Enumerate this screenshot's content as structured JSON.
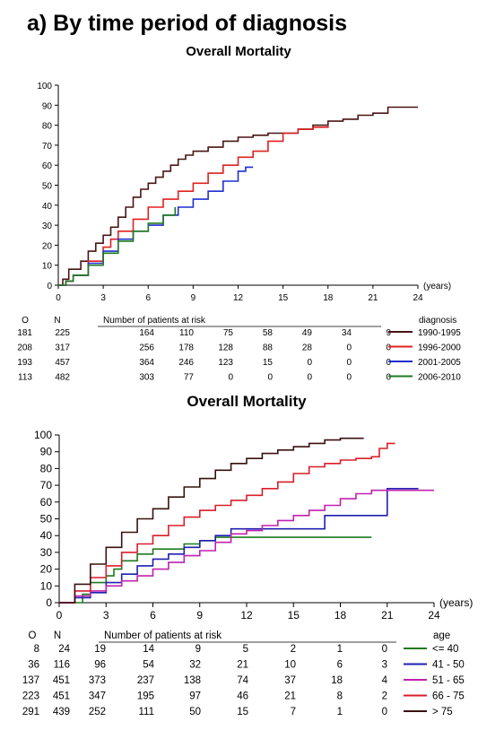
{
  "heading": "a)  By time period of diagnosis",
  "chart_data": [
    {
      "type": "line",
      "title": "Overall Mortality",
      "xunit": "(years)",
      "xlim": [
        0,
        24
      ],
      "ylim": [
        0,
        100
      ],
      "xticks": [
        0,
        3,
        6,
        9,
        12,
        15,
        18,
        21,
        24
      ],
      "yticks": [
        0,
        10,
        20,
        30,
        40,
        50,
        60,
        70,
        80,
        90,
        100
      ],
      "legend_title": "diagnosis",
      "risk_table": {
        "header_O": "O",
        "header_N": "N",
        "label": "Number of patients at risk",
        "rows": [
          {
            "O": "181",
            "N": "225",
            "values": [
              "164",
              "110",
              "75",
              "58",
              "49",
              "34",
              "9"
            ]
          },
          {
            "O": "208",
            "N": "317",
            "values": [
              "256",
              "178",
              "128",
              "88",
              "28",
              "0",
              "0"
            ]
          },
          {
            "O": "193",
            "N": "457",
            "values": [
              "364",
              "246",
              "123",
              "15",
              "0",
              "0",
              "0"
            ]
          },
          {
            "O": "113",
            "N": "482",
            "values": [
              "303",
              "77",
              "0",
              "0",
              "0",
              "0",
              "0"
            ]
          }
        ]
      },
      "series": [
        {
          "name": "1990-1995",
          "color": "#4a1414",
          "points": [
            [
              0,
              0
            ],
            [
              0.3,
              3
            ],
            [
              0.7,
              8
            ],
            [
              1.5,
              12
            ],
            [
              2,
              17
            ],
            [
              2.5,
              21
            ],
            [
              3,
              25
            ],
            [
              3.5,
              29
            ],
            [
              4,
              34
            ],
            [
              4.5,
              39
            ],
            [
              5,
              44
            ],
            [
              5.5,
              48
            ],
            [
              6,
              51
            ],
            [
              6.5,
              54
            ],
            [
              7,
              57
            ],
            [
              7.5,
              60
            ],
            [
              8,
              63
            ],
            [
              8.5,
              65
            ],
            [
              9,
              67
            ],
            [
              10,
              69
            ],
            [
              11,
              72
            ],
            [
              12,
              74
            ],
            [
              13,
              75
            ],
            [
              14,
              76
            ],
            [
              15,
              76
            ],
            [
              16,
              78
            ],
            [
              17,
              80
            ],
            [
              18,
              82
            ],
            [
              19,
              83
            ],
            [
              20,
              85
            ],
            [
              21,
              86
            ],
            [
              22,
              89
            ],
            [
              24,
              89
            ]
          ]
        },
        {
          "name": "1996-2000",
          "color": "#e02020",
          "points": [
            [
              0,
              0
            ],
            [
              0.5,
              2
            ],
            [
              1,
              5
            ],
            [
              2,
              12
            ],
            [
              3,
              19
            ],
            [
              3.5,
              23
            ],
            [
              4,
              27
            ],
            [
              5,
              33
            ],
            [
              6,
              39
            ],
            [
              7,
              43
            ],
            [
              8,
              47
            ],
            [
              9,
              51
            ],
            [
              10,
              56
            ],
            [
              11,
              60
            ],
            [
              12,
              64
            ],
            [
              13,
              67
            ],
            [
              14,
              72
            ],
            [
              15,
              76
            ],
            [
              16,
              78
            ],
            [
              17,
              79
            ],
            [
              18,
              80
            ]
          ]
        },
        {
          "name": "2001-2005",
          "color": "#1f2ecf",
          "points": [
            [
              0,
              0
            ],
            [
              0.5,
              2
            ],
            [
              1,
              5
            ],
            [
              2,
              11
            ],
            [
              3,
              17
            ],
            [
              4,
              23
            ],
            [
              5,
              27
            ],
            [
              6,
              30
            ],
            [
              7,
              35
            ],
            [
              8,
              39
            ],
            [
              9,
              43
            ],
            [
              10,
              47
            ],
            [
              11,
              52
            ],
            [
              12,
              57
            ],
            [
              12.5,
              59
            ],
            [
              13,
              59
            ]
          ]
        },
        {
          "name": "2006-2010",
          "color": "#1f7a1f",
          "points": [
            [
              0,
              0
            ],
            [
              0.5,
              2
            ],
            [
              1,
              5
            ],
            [
              2,
              10
            ],
            [
              3,
              16
            ],
            [
              4,
              22
            ],
            [
              5,
              27
            ],
            [
              6,
              31
            ],
            [
              7,
              35
            ],
            [
              7.8,
              39
            ]
          ]
        }
      ]
    },
    {
      "type": "line",
      "title": "Overall Mortality",
      "xunit": "(years)",
      "xlim": [
        0,
        24
      ],
      "ylim": [
        0,
        100
      ],
      "xticks": [
        0,
        3,
        6,
        9,
        12,
        15,
        18,
        21,
        24
      ],
      "yticks": [
        0,
        10,
        20,
        30,
        40,
        50,
        60,
        70,
        80,
        90,
        100
      ],
      "legend_title": "age",
      "risk_table": {
        "header_O": "O",
        "header_N": "N",
        "label": "Number of patients at risk",
        "rows": [
          {
            "O": "8",
            "N": "24",
            "values": [
              "19",
              "14",
              "9",
              "5",
              "2",
              "1",
              "0"
            ]
          },
          {
            "O": "36",
            "N": "116",
            "values": [
              "96",
              "54",
              "32",
              "21",
              "10",
              "6",
              "3"
            ]
          },
          {
            "O": "137",
            "N": "451",
            "values": [
              "373",
              "237",
              "138",
              "74",
              "37",
              "18",
              "4"
            ]
          },
          {
            "O": "223",
            "N": "451",
            "values": [
              "347",
              "195",
              "97",
              "46",
              "21",
              "8",
              "2"
            ]
          },
          {
            "O": "291",
            "N": "439",
            "values": [
              "252",
              "111",
              "50",
              "15",
              "7",
              "1",
              "0"
            ]
          }
        ]
      },
      "series": [
        {
          "name": "<= 40",
          "color": "#1f7a1f",
          "points": [
            [
              0,
              0
            ],
            [
              1.5,
              5
            ],
            [
              2,
              12
            ],
            [
              3,
              16
            ],
            [
              3.5,
              20
            ],
            [
              4,
              25
            ],
            [
              5,
              29
            ],
            [
              6,
              32
            ],
            [
              7,
              32
            ],
            [
              8,
              35
            ],
            [
              9,
              37
            ],
            [
              10,
              39
            ],
            [
              20,
              39
            ]
          ]
        },
        {
          "name": "41 - 50",
          "color": "#1f1fb0",
          "points": [
            [
              0,
              0
            ],
            [
              1,
              3
            ],
            [
              2,
              6
            ],
            [
              3,
              12
            ],
            [
              4,
              17
            ],
            [
              5,
              22
            ],
            [
              6,
              26
            ],
            [
              7,
              29
            ],
            [
              8,
              33
            ],
            [
              9,
              37
            ],
            [
              10,
              40
            ],
            [
              11,
              44
            ],
            [
              14,
              44
            ],
            [
              15,
              44
            ],
            [
              17,
              52
            ],
            [
              19,
              52
            ],
            [
              21,
              52
            ],
            [
              21,
              68
            ],
            [
              23,
              68
            ]
          ]
        },
        {
          "name": "51 - 65",
          "color": "#c020b0",
          "points": [
            [
              0,
              0
            ],
            [
              1,
              4
            ],
            [
              2,
              7
            ],
            [
              3,
              10
            ],
            [
              4,
              13
            ],
            [
              5,
              16
            ],
            [
              6,
              20
            ],
            [
              7,
              24
            ],
            [
              8,
              28
            ],
            [
              9,
              31
            ],
            [
              10,
              36
            ],
            [
              11,
              41
            ],
            [
              12,
              43
            ],
            [
              13,
              46
            ],
            [
              14,
              49
            ],
            [
              15,
              52
            ],
            [
              16,
              55
            ],
            [
              17,
              58
            ],
            [
              18,
              62
            ],
            [
              19,
              65
            ],
            [
              20,
              67
            ],
            [
              24,
              67
            ]
          ]
        },
        {
          "name": "66 - 75",
          "color": "#d81e2a",
          "points": [
            [
              0,
              0
            ],
            [
              1,
              7
            ],
            [
              2,
              15
            ],
            [
              3,
              22
            ],
            [
              4,
              30
            ],
            [
              5,
              35
            ],
            [
              6,
              40
            ],
            [
              7,
              46
            ],
            [
              8,
              51
            ],
            [
              9,
              55
            ],
            [
              10,
              58
            ],
            [
              11,
              61
            ],
            [
              12,
              64
            ],
            [
              13,
              68
            ],
            [
              14,
              72
            ],
            [
              15,
              77
            ],
            [
              16,
              81
            ],
            [
              17,
              83
            ],
            [
              18,
              85
            ],
            [
              19,
              86
            ],
            [
              20,
              87
            ],
            [
              20.5,
              92
            ],
            [
              21,
              92
            ],
            [
              21,
              95
            ],
            [
              21.5,
              95
            ]
          ]
        },
        {
          "name": "> 75",
          "color": "#3a1010",
          "points": [
            [
              0,
              0
            ],
            [
              1,
              11
            ],
            [
              2,
              23
            ],
            [
              3,
              33
            ],
            [
              4,
              42
            ],
            [
              5,
              50
            ],
            [
              6,
              56
            ],
            [
              7,
              63
            ],
            [
              8,
              69
            ],
            [
              9,
              74
            ],
            [
              10,
              79
            ],
            [
              11,
              83
            ],
            [
              12,
              86
            ],
            [
              13,
              89
            ],
            [
              14,
              91
            ],
            [
              15,
              93
            ],
            [
              16,
              95
            ],
            [
              17,
              97
            ],
            [
              18,
              98
            ],
            [
              19,
              98
            ],
            [
              19.5,
              98
            ]
          ]
        }
      ]
    }
  ]
}
